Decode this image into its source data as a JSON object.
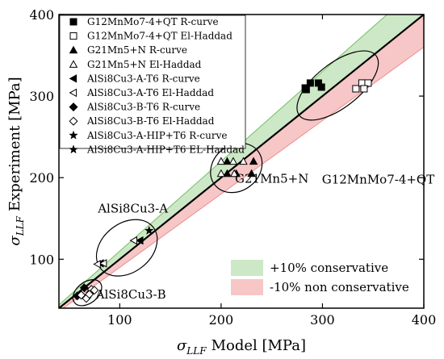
{
  "chart_data": {
    "type": "scatter",
    "xlabel": "σ_LLF Model [MPa]",
    "xlabel_parts": {
      "sym": "σ",
      "sub": "LLF",
      "rest": "Model [MPa]"
    },
    "ylabel": "σ_LLF Experiment [MPa]",
    "ylabel_parts": {
      "sym": "σ",
      "sub": "LLF",
      "rest": "Experiment [MPa]"
    },
    "xlim": [
      40,
      400
    ],
    "ylim": [
      40,
      400
    ],
    "xticks": [
      100,
      200,
      300,
      400
    ],
    "yticks": [
      100,
      200,
      300,
      400
    ],
    "grid": false,
    "reference_line": {
      "slope": 1,
      "color": "#000000"
    },
    "bands": [
      {
        "name": "+10% conservative",
        "factor_low": 1.0,
        "factor_high": 1.1,
        "color": "#cde8c6"
      },
      {
        "name": "-10% non conservative",
        "factor_low": 0.9,
        "factor_high": 1.0,
        "color": "#f7c6c6"
      }
    ],
    "legend_placement": "top-left",
    "series": [
      {
        "name": "G12MnMo7-4+QT R-curve",
        "marker": "square-filled",
        "points": [
          [
            283,
            310
          ],
          [
            288,
            316
          ],
          [
            296,
            316
          ],
          [
            299,
            311
          ],
          [
            284,
            308
          ]
        ]
      },
      {
        "name": "G12MnMo7-4+QT El-Haddad",
        "marker": "square-open",
        "points": [
          [
            333,
            309
          ],
          [
            339,
            316
          ],
          [
            345,
            316
          ],
          [
            341,
            309
          ]
        ]
      },
      {
        "name": "G21Mn5+N R-curve",
        "marker": "triangle-up-filled",
        "points": [
          [
            206,
            220
          ],
          [
            206,
            205
          ],
          [
            215,
            205
          ],
          [
            230,
            205
          ],
          [
            232,
            220
          ]
        ]
      },
      {
        "name": "G21Mn5+N El-Haddad",
        "marker": "triangle-up-open",
        "points": [
          [
            200,
            220
          ],
          [
            200,
            205
          ],
          [
            212,
            220
          ],
          [
            213,
            205
          ],
          [
            222,
            220
          ]
        ]
      },
      {
        "name": "AlSi8Cu3-A-T6 R-curve",
        "marker": "triangle-left-filled",
        "points": [
          [
            120,
            123
          ],
          [
            81,
            95
          ]
        ]
      },
      {
        "name": "AlSi8Cu3-A-T6 El-Haddad",
        "marker": "triangle-left-open",
        "points": [
          [
            114,
            123
          ],
          [
            84,
            95
          ],
          [
            78,
            94
          ]
        ]
      },
      {
        "name": "AlSi8Cu3-B-T6 R-curve",
        "marker": "diamond-filled",
        "points": [
          [
            58,
            55
          ],
          [
            65,
            65
          ],
          [
            71,
            59
          ],
          [
            68,
            54
          ]
        ]
      },
      {
        "name": "AlSi8Cu3-B-T6 El-Haddad",
        "marker": "diamond-open",
        "points": [
          [
            62,
            56
          ],
          [
            72,
            63
          ],
          [
            75,
            62
          ],
          [
            67,
            52
          ],
          [
            70,
            57
          ]
        ]
      },
      {
        "name": "AlSi8Cu3-A-HIP+T6 R-curve",
        "marker": "star",
        "points": [
          [
            129,
            135
          ]
        ]
      },
      {
        "name": "AlSi8Cu3-A-HIP+T6 EL-Haddad",
        "marker": "star",
        "points": []
      }
    ],
    "annotations": [
      {
        "label": "G12MnMo7-4+QT",
        "anchor_data": [
          355,
          193
        ]
      },
      {
        "label": "G21Mn5+N",
        "anchor_data": [
          250,
          194
        ]
      },
      {
        "label": "AlSi8Cu3-A",
        "anchor_data": [
          113,
          157
        ]
      },
      {
        "label": "AlSi8Cu3-B",
        "anchor_data": [
          111,
          52
        ]
      }
    ],
    "ellipses": [
      {
        "label": "G12MnMo7-4+QT",
        "center": [
          315,
          313
        ],
        "rx_data": 48,
        "ry_data": 27
      },
      {
        "label": "G21Mn5+N",
        "center": [
          215,
          212
        ],
        "rx_data": 27,
        "ry_data": 28
      },
      {
        "label": "AlSi8Cu3-A",
        "center": [
          107,
          114
        ],
        "rx_data": 33,
        "ry_data": 30
      },
      {
        "label": "AlSi8Cu3-B",
        "center": [
          68,
          59
        ],
        "rx_data": 16,
        "ry_data": 13
      }
    ]
  }
}
